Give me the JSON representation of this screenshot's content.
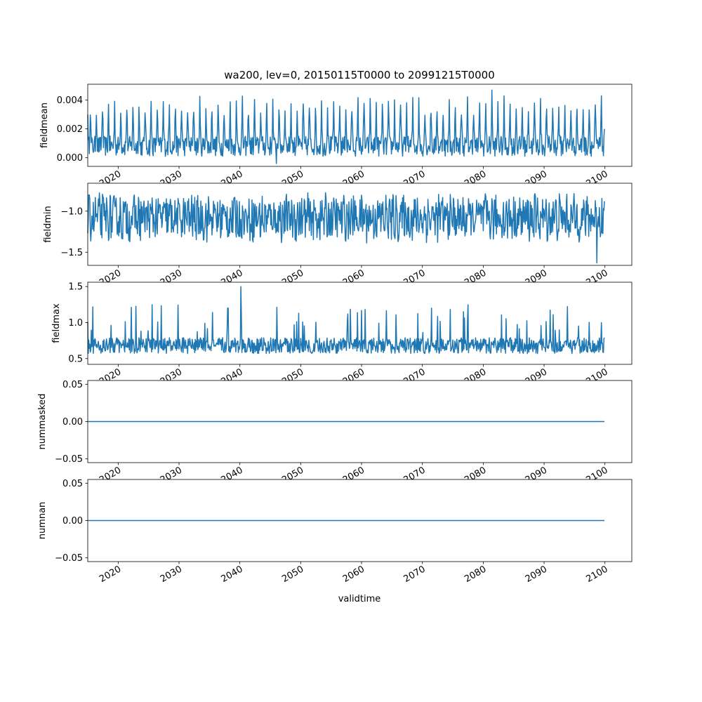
{
  "figure": {
    "title": "wa200, lev=0, 20150115T0000 to 20991215T0000",
    "xlabel": "validtime",
    "line_color": "#1f77b4"
  },
  "chart_data": [
    {
      "type": "line",
      "ylabel": "fieldmean",
      "x": {
        "start": "2015-01-15",
        "end": "2099-12-15",
        "step": "monthly",
        "count": 1020
      },
      "xlim": [
        "2015-01",
        "2104-06"
      ],
      "ylim": [
        -0.0006,
        0.0051
      ],
      "yticks": [
        0.0,
        0.002,
        0.004
      ],
      "ytick_labels": [
        "0.000",
        "0.002",
        "0.004"
      ],
      "xticks": [
        2020,
        2030,
        2040,
        2050,
        2060,
        2070,
        2080,
        2090,
        2100
      ],
      "xtick_labels": [
        "2020",
        "2030",
        "2040",
        "2050",
        "2060",
        "2070",
        "2080",
        "2090",
        "2100"
      ],
      "values_summary": {
        "first": 0.003,
        "peak_typical": 0.0036,
        "trough_typical": 0.0003,
        "max": 0.0047,
        "max_date": "2081-06",
        "min": -0.0004,
        "last": 0.002,
        "season_peak_month": 6
      }
    },
    {
      "type": "line",
      "ylabel": "fieldmin",
      "x": {
        "start": "2015-01-15",
        "end": "2099-12-15",
        "step": "monthly",
        "count": 1020
      },
      "xlim": [
        "2015-01",
        "2104-06"
      ],
      "ylim": [
        -1.66,
        -0.66
      ],
      "yticks": [
        -1.5,
        -1.0
      ],
      "ytick_labels": [
        "−1.5",
        "−1.0"
      ],
      "xticks": [
        2020,
        2030,
        2040,
        2050,
        2060,
        2070,
        2080,
        2090,
        2100
      ],
      "xtick_labels": [
        "2020",
        "2030",
        "2040",
        "2050",
        "2060",
        "2070",
        "2080",
        "2090",
        "2100"
      ],
      "values_summary": {
        "first": -1.27,
        "mean": -1.08,
        "max": -0.71,
        "min": -1.63,
        "min_date": "2098-09",
        "last": -0.88
      }
    },
    {
      "type": "line",
      "ylabel": "fieldmax",
      "x": {
        "start": "2015-01-15",
        "end": "2099-12-15",
        "step": "monthly",
        "count": 1020
      },
      "xlim": [
        "2015-01",
        "2104-06"
      ],
      "ylim": [
        0.42,
        1.56
      ],
      "yticks": [
        0.5,
        1.0,
        1.5
      ],
      "ytick_labels": [
        "0.5",
        "1.0",
        "1.5"
      ],
      "xticks": [
        2020,
        2030,
        2040,
        2050,
        2060,
        2070,
        2080,
        2090,
        2100
      ],
      "xtick_labels": [
        "2020",
        "2030",
        "2040",
        "2050",
        "2060",
        "2070",
        "2080",
        "2090",
        "2100"
      ],
      "values_summary": {
        "first": 1.01,
        "base": 0.68,
        "max": 1.5,
        "max_date": "2040-03",
        "min": 0.47,
        "last": 0.79
      }
    },
    {
      "type": "line",
      "ylabel": "nummasked",
      "x": {
        "start": "2015-01-15",
        "end": "2099-12-15",
        "step": "monthly",
        "count": 1020
      },
      "xlim": [
        "2015-01",
        "2104-06"
      ],
      "ylim": [
        -0.055,
        0.055
      ],
      "yticks": [
        -0.05,
        0.0,
        0.05
      ],
      "ytick_labels": [
        "−0.05",
        "0.00",
        "0.05"
      ],
      "xticks": [
        2020,
        2030,
        2040,
        2050,
        2060,
        2070,
        2080,
        2090,
        2100
      ],
      "xtick_labels": [
        "2020",
        "2030",
        "2040",
        "2050",
        "2060",
        "2070",
        "2080",
        "2090",
        "2100"
      ],
      "constant_value": 0.0
    },
    {
      "type": "line",
      "ylabel": "numnan",
      "x": {
        "start": "2015-01-15",
        "end": "2099-12-15",
        "step": "monthly",
        "count": 1020
      },
      "xlim": [
        "2015-01",
        "2104-06"
      ],
      "ylim": [
        -0.055,
        0.055
      ],
      "yticks": [
        -0.05,
        0.0,
        0.05
      ],
      "ytick_labels": [
        "−0.05",
        "0.00",
        "0.05"
      ],
      "xticks": [
        2020,
        2030,
        2040,
        2050,
        2060,
        2070,
        2080,
        2090,
        2100
      ],
      "xtick_labels": [
        "2020",
        "2030",
        "2040",
        "2050",
        "2060",
        "2070",
        "2080",
        "2090",
        "2100"
      ],
      "constant_value": 0.0
    }
  ]
}
